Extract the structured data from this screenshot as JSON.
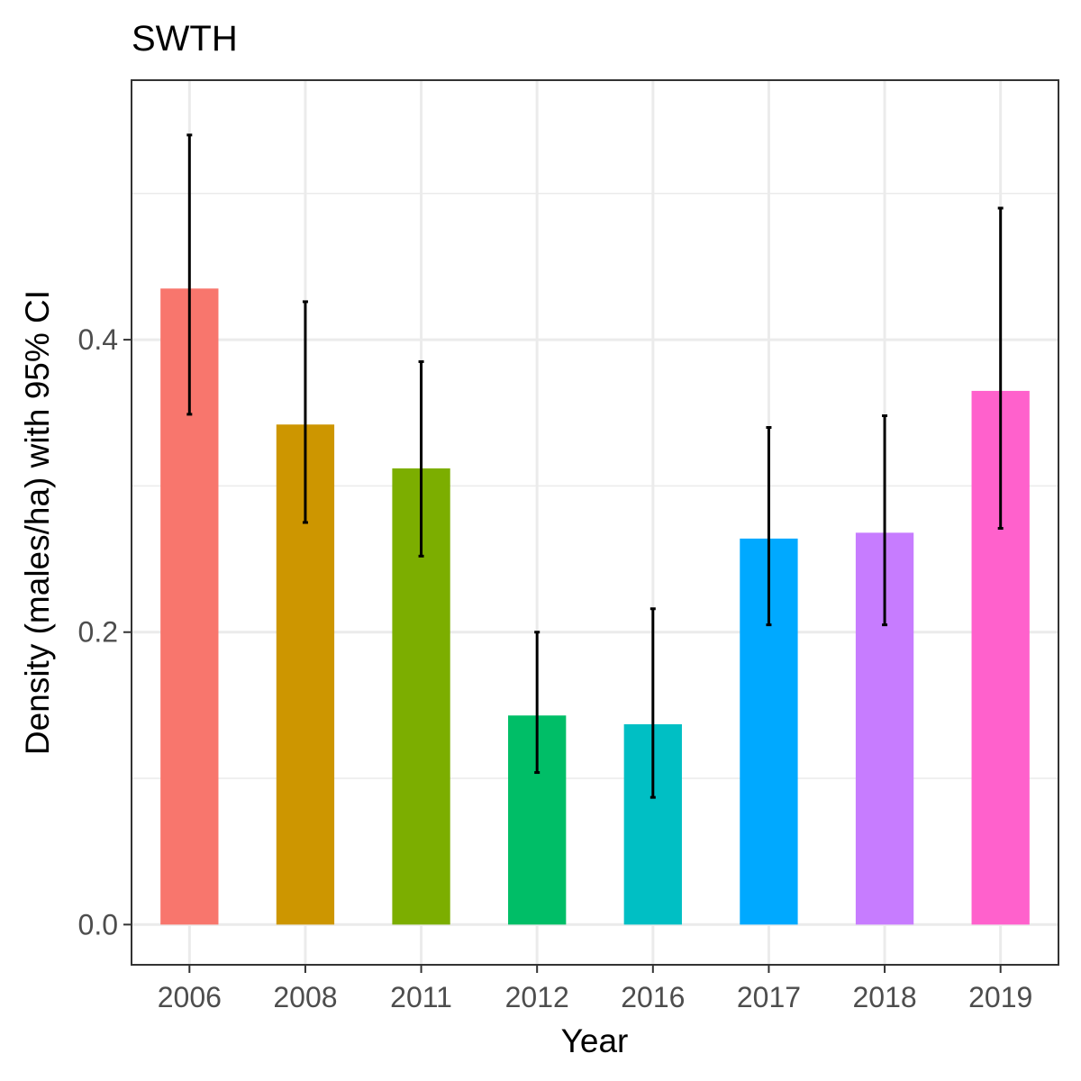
{
  "chart_data": {
    "type": "bar",
    "title": "SWTH",
    "xlabel": "Year",
    "ylabel": "Density (males/ha) with 95% CI",
    "categories": [
      "2006",
      "2008",
      "2011",
      "2012",
      "2016",
      "2017",
      "2018",
      "2019"
    ],
    "values": [
      0.435,
      0.342,
      0.312,
      0.143,
      0.137,
      0.264,
      0.268,
      0.365
    ],
    "ci_lower": [
      0.349,
      0.275,
      0.252,
      0.104,
      0.087,
      0.205,
      0.205,
      0.271
    ],
    "ci_upper": [
      0.54,
      0.426,
      0.385,
      0.2,
      0.216,
      0.34,
      0.348,
      0.49
    ],
    "colors": [
      "#F8766D",
      "#CD9600",
      "#7CAE00",
      "#00BE67",
      "#00BFC4",
      "#00A9FF",
      "#C77CFF",
      "#FF61CC"
    ],
    "ylim": [
      -0.0275,
      0.5775
    ],
    "yticks": [
      0.0,
      0.2,
      0.4
    ],
    "ytick_labels": [
      "0.0",
      "0.2",
      "0.4"
    ],
    "y_minor_gridlines": [
      0.1,
      0.3,
      0.5
    ],
    "grid": true,
    "legend": "none",
    "error_bar_color": "#000000",
    "panel_border_color": "#333333",
    "gridline_color": "#ebebeb"
  }
}
